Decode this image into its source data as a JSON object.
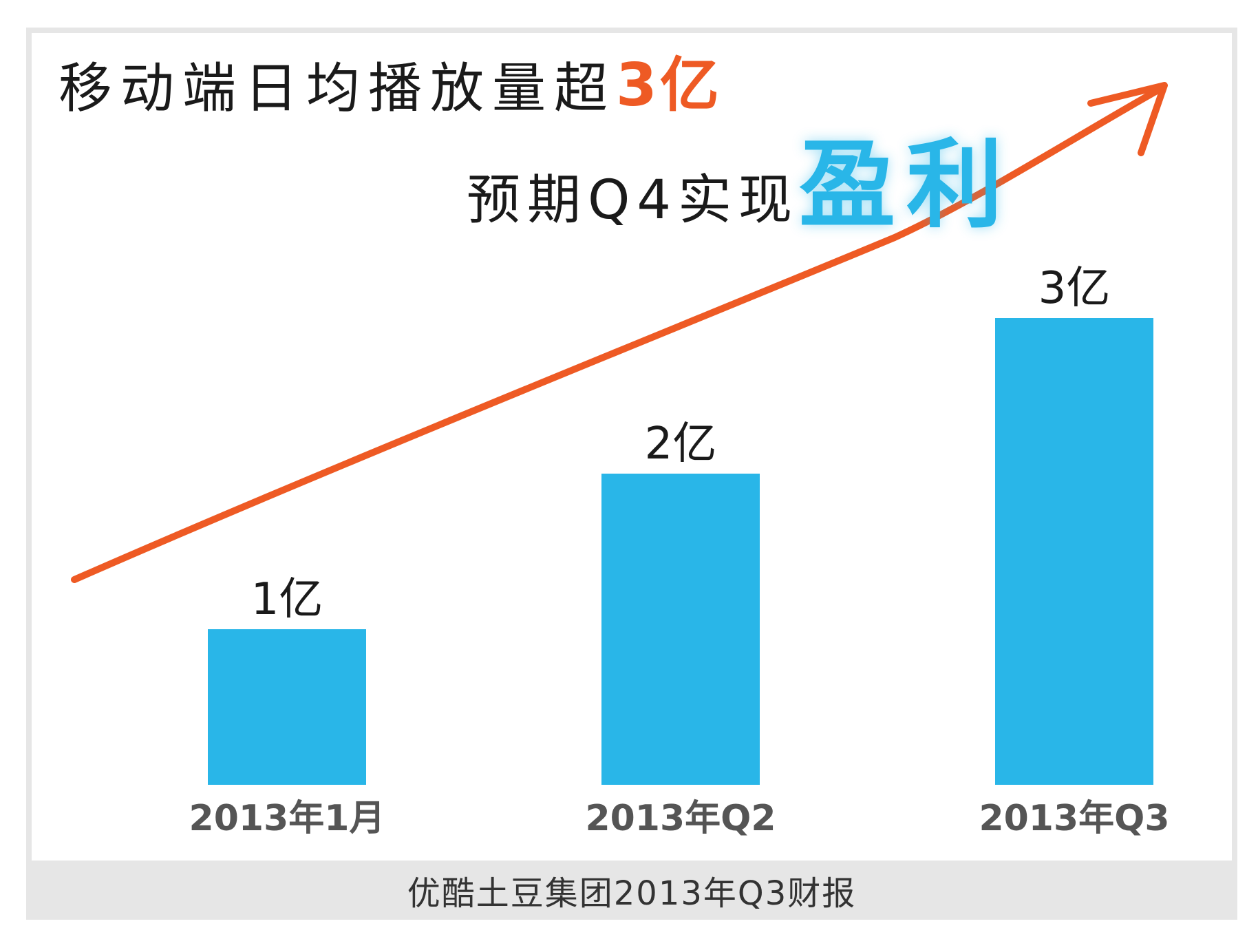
{
  "headline": {
    "text": "移动端日均播放量超",
    "accent": "3亿"
  },
  "subline": {
    "text": "预期Q4实现",
    "accent": "盈利"
  },
  "footer": {
    "source": "优酷土豆集团2013年Q3财报"
  },
  "colors": {
    "bar": "#29b6e8",
    "arrow": "#ee5a24",
    "text": "#1a1a1a",
    "axis_label": "#555555"
  },
  "chart_data": {
    "type": "bar",
    "categories": [
      "2013年1月",
      "2013年Q2",
      "2013年Q3"
    ],
    "values": [
      1,
      2,
      3
    ],
    "value_labels": [
      "1亿",
      "2亿",
      "3亿"
    ],
    "unit": "亿",
    "ylim": [
      0,
      3
    ],
    "trend_arrow": true,
    "grid": false
  }
}
